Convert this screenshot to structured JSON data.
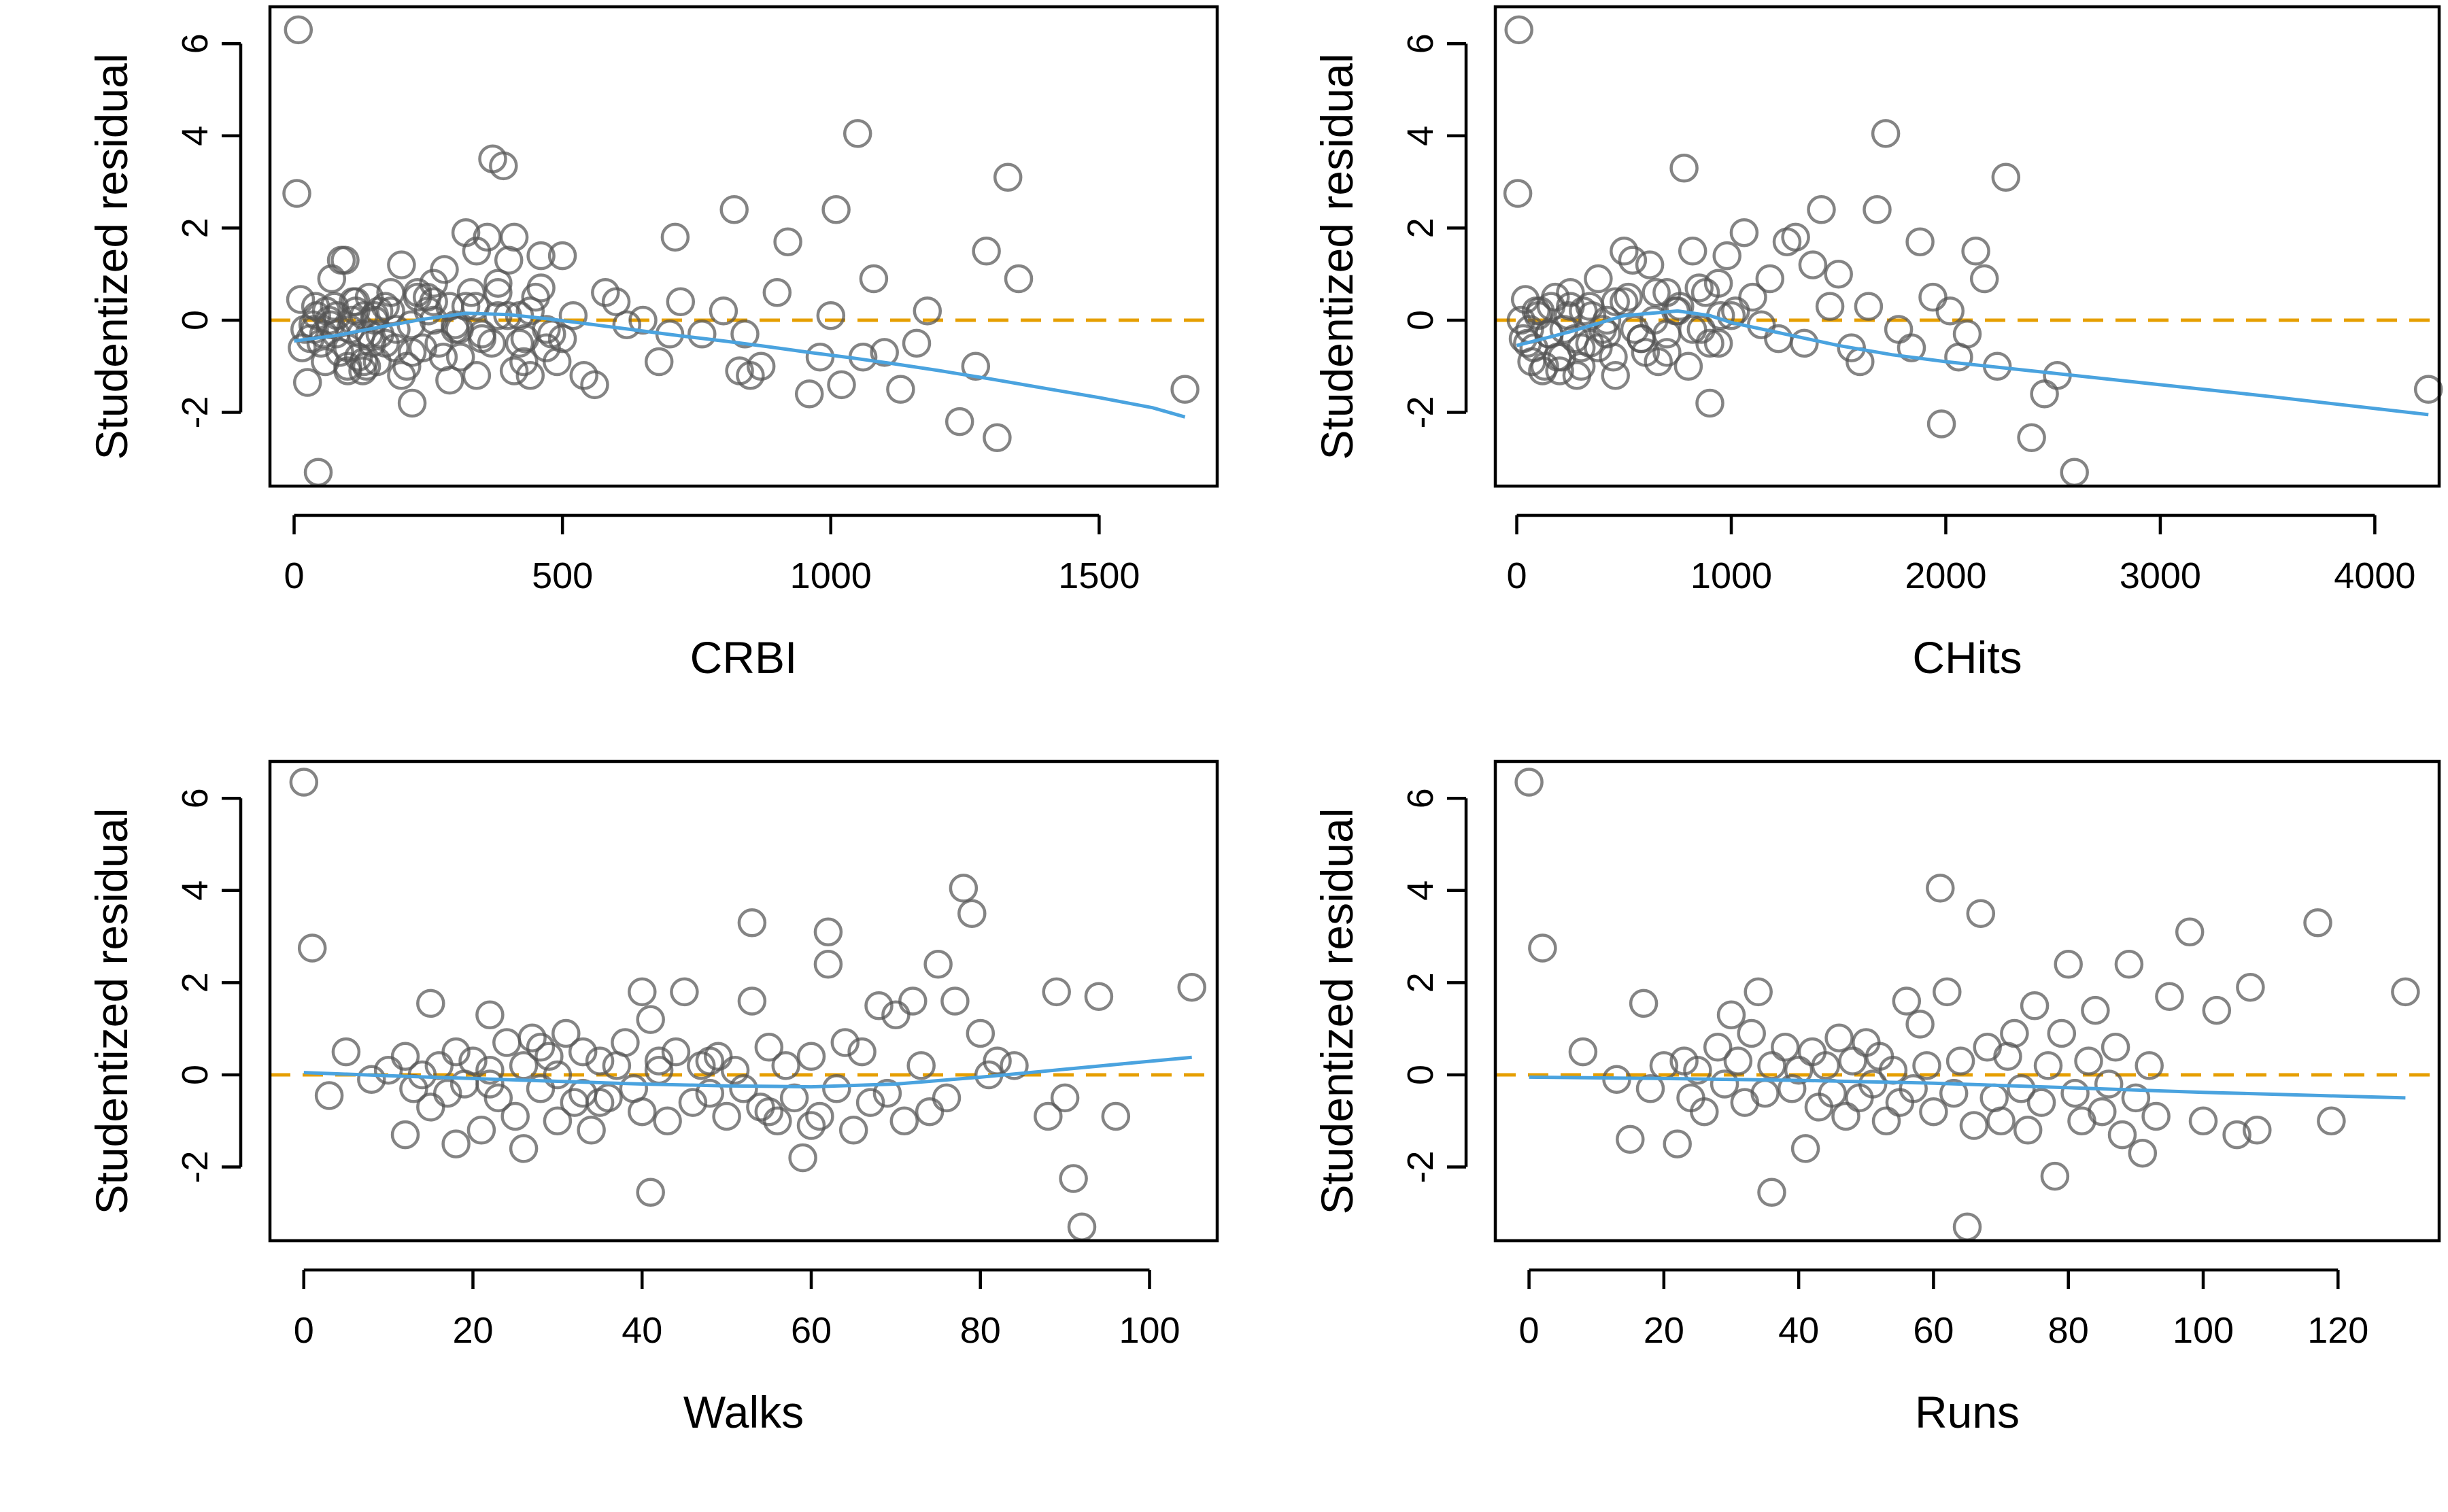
{
  "chart_data": [
    {
      "type": "scatter",
      "title": "",
      "xlabel": "CRBI",
      "ylabel": "Studentized residual",
      "xlim": [
        -45,
        1720
      ],
      "ylim": [
        -3.6,
        6.8
      ],
      "xticks": [
        0,
        500,
        1000,
        1500
      ],
      "yticks": [
        -2,
        0,
        2,
        4,
        6
      ],
      "reference_line_y": 0,
      "grid": false,
      "legend": "none",
      "colors": {
        "points": "#555555",
        "smooth": "#4aa3df",
        "reference": "#e69f00"
      },
      "points": {
        "x": [
          8,
          5,
          12,
          20,
          30,
          35,
          42,
          50,
          55,
          60,
          68,
          75,
          80,
          88,
          95,
          100,
          105,
          110,
          115,
          120,
          125,
          130,
          135,
          140,
          145,
          150,
          155,
          160,
          170,
          180,
          190,
          200,
          210,
          220,
          230,
          240,
          250,
          260,
          270,
          280,
          290,
          300,
          310,
          320,
          330,
          340,
          350,
          360,
          370,
          380,
          390,
          400,
          410,
          420,
          430,
          440,
          450,
          460,
          470,
          480,
          490,
          500,
          520,
          540,
          560,
          580,
          600,
          620,
          650,
          680,
          700,
          710,
          720,
          760,
          800,
          820,
          830,
          840,
          850,
          870,
          900,
          920,
          960,
          980,
          1000,
          1010,
          1020,
          1050,
          1060,
          1080,
          1100,
          1130,
          1160,
          1180,
          1240,
          1270,
          1290,
          1310,
          1330,
          1350,
          1660,
          25,
          45,
          65,
          85,
          100,
          115,
          130,
          150,
          170,
          200,
          230,
          260,
          290,
          320,
          350,
          380,
          410,
          440,
          470,
          15,
          40,
          70,
          100,
          140,
          180,
          220,
          260,
          300,
          340,
          380,
          420,
          460,
          500,
          38,
          58,
          78,
          108,
          128,
          158,
          188,
          218,
          248,
          278,
          308,
          338,
          368,
          398,
          428
        ],
        "y": [
          6.3,
          2.75,
          0.45,
          -0.2,
          -0.4,
          -0.1,
          0.1,
          -0.5,
          -0.3,
          0.2,
          -0.1,
          0.3,
          0.1,
          1.3,
          1.3,
          -0.6,
          -0.2,
          0.4,
          0.2,
          -0.8,
          -0.3,
          0.1,
          -1.0,
          0.5,
          -0.5,
          0.0,
          -0.9,
          -0.3,
          0.3,
          0.6,
          -0.2,
          1.2,
          -1.0,
          -1.8,
          0.5,
          -0.6,
          0.2,
          0.8,
          -0.5,
          1.1,
          0.3,
          -0.2,
          -0.8,
          1.9,
          0.6,
          1.5,
          -0.3,
          1.8,
          3.5,
          0.6,
          3.35,
          1.3,
          1.8,
          0.1,
          -0.4,
          -1.2,
          0.5,
          1.4,
          -0.6,
          -0.3,
          -0.9,
          1.4,
          0.1,
          -1.2,
          -1.4,
          0.6,
          0.4,
          -0.1,
          0.0,
          -0.9,
          -0.3,
          1.8,
          0.4,
          -0.3,
          0.2,
          2.4,
          -1.1,
          -0.3,
          -1.2,
          -1.0,
          0.6,
          1.7,
          -1.6,
          -0.8,
          0.1,
          2.4,
          -1.4,
          4.05,
          -0.8,
          0.9,
          -0.7,
          -1.5,
          -0.5,
          0.2,
          -2.2,
          -1.0,
          1.5,
          -2.55,
          3.1,
          0.9,
          -1.5,
          -1.35,
          -3.3,
          0.0,
          -0.7,
          -1.1,
          0.4,
          -0.9,
          0.1,
          -0.5,
          -1.2,
          0.6,
          0.0,
          -1.3,
          0.3,
          -0.4,
          0.8,
          -1.1,
          0.2,
          -0.2,
          -0.6,
          0.3,
          0.9,
          -1.0,
          -0.3,
          0.2,
          -0.7,
          0.4,
          -0.1,
          -1.2,
          0.1,
          -0.5,
          0.7,
          -0.4,
          -0.2,
          -0.9,
          -0.3,
          0.0,
          -1.1,
          0.2,
          -0.6,
          -0.1,
          0.5,
          -0.8,
          -0.2,
          0.3,
          -0.5,
          0.1,
          -0.9
        ]
      },
      "smooth": {
        "x": [
          0,
          80,
          160,
          240,
          320,
          400,
          480,
          560,
          640,
          720,
          800,
          880,
          960,
          1040,
          1120,
          1200,
          1300,
          1400,
          1500,
          1600,
          1660
        ],
        "y": [
          -0.45,
          -0.33,
          -0.15,
          0.02,
          0.15,
          0.12,
          0.02,
          -0.1,
          -0.22,
          -0.34,
          -0.45,
          -0.57,
          -0.7,
          -0.82,
          -0.95,
          -1.09,
          -1.28,
          -1.48,
          -1.68,
          -1.9,
          -2.1
        ]
      }
    },
    {
      "type": "scatter",
      "title": "",
      "xlabel": "CHits",
      "ylabel": "Studentized residual",
      "xlim": [
        -100,
        4300
      ],
      "ylim": [
        -3.6,
        6.8
      ],
      "xticks": [
        0,
        1000,
        2000,
        3000,
        4000
      ],
      "yticks": [
        -2,
        0,
        2,
        4,
        6
      ],
      "reference_line_y": 0,
      "grid": false,
      "legend": "none",
      "colors": {
        "points": "#555555",
        "smooth": "#4aa3df",
        "reference": "#e69f00"
      },
      "points": {
        "x": [
          10,
          5,
          40,
          60,
          80,
          100,
          130,
          160,
          190,
          220,
          250,
          280,
          310,
          340,
          380,
          420,
          460,
          500,
          540,
          580,
          620,
          660,
          700,
          740,
          780,
          820,
          860,
          900,
          940,
          980,
          1020,
          1060,
          1100,
          1140,
          1180,
          1220,
          1260,
          1300,
          1340,
          1380,
          1420,
          1460,
          1500,
          1560,
          1600,
          1640,
          1680,
          1720,
          1780,
          1840,
          1880,
          1940,
          1980,
          2020,
          2060,
          2100,
          2140,
          2180,
          2240,
          2280,
          2400,
          2460,
          2520,
          2600,
          4250,
          20,
          50,
          90,
          120,
          150,
          180,
          210,
          240,
          270,
          300,
          340,
          380,
          420,
          460,
          500,
          550,
          600,
          650,
          700,
          750,
          800,
          850,
          900,
          950,
          30,
          70,
          110,
          150,
          200,
          250,
          300,
          350,
          400,
          450,
          520,
          580,
          640,
          700,
          760,
          820,
          880,
          940,
          1000
        ],
        "y": [
          6.3,
          2.75,
          0.45,
          -0.2,
          -0.6,
          0.1,
          -1.0,
          0.3,
          -0.8,
          -0.2,
          0.6,
          -1.2,
          0.2,
          -0.5,
          0.9,
          -0.3,
          0.4,
          1.5,
          1.3,
          -0.4,
          1.2,
          -0.9,
          0.6,
          0.2,
          3.3,
          1.5,
          -0.2,
          -1.8,
          0.8,
          1.4,
          0.2,
          1.9,
          0.5,
          -0.1,
          0.9,
          -0.4,
          1.7,
          1.8,
          -0.5,
          1.2,
          2.4,
          0.3,
          1.0,
          -0.6,
          -0.9,
          0.3,
          2.4,
          4.05,
          -0.2,
          -0.6,
          1.7,
          0.5,
          -2.25,
          0.2,
          -0.8,
          -0.3,
          1.5,
          0.9,
          -1.0,
          3.1,
          -2.55,
          -1.6,
          -1.2,
          -3.3,
          -1.5,
          0.0,
          -0.5,
          0.2,
          -1.1,
          -0.3,
          0.5,
          -0.8,
          0.1,
          -0.4,
          -1.0,
          0.3,
          -0.6,
          0.0,
          -1.2,
          0.4,
          -0.2,
          -0.7,
          0.6,
          -0.3,
          0.2,
          -1.0,
          0.7,
          -0.5,
          0.1,
          -0.4,
          -0.9,
          0.2,
          -0.3,
          -1.1,
          0.3,
          -0.6,
          0.1,
          -0.2,
          -0.8,
          0.5,
          -0.4,
          0.0,
          -0.7,
          0.3,
          -0.2,
          0.6,
          -0.5,
          0.1
        ]
      },
      "smooth": {
        "x": [
          0,
          250,
          500,
          750,
          900,
          1000,
          1250,
          1500,
          1750,
          2000,
          2500,
          3000,
          3500,
          4250
        ],
        "y": [
          -0.55,
          -0.25,
          0.1,
          0.2,
          0.1,
          -0.05,
          -0.3,
          -0.55,
          -0.75,
          -0.9,
          -1.15,
          -1.4,
          -1.65,
          -2.05
        ]
      }
    },
    {
      "type": "scatter",
      "title": "",
      "xlabel": "Walks",
      "ylabel": "Studentized residual",
      "xlim": [
        -4,
        108
      ],
      "ylim": [
        -3.6,
        6.8
      ],
      "xticks": [
        0,
        20,
        40,
        60,
        80,
        100
      ],
      "yticks": [
        -2,
        0,
        2,
        4,
        6
      ],
      "reference_line_y": 0,
      "grid": false,
      "legend": "none",
      "colors": {
        "points": "#555555",
        "smooth": "#4aa3df",
        "reference": "#e69f00"
      },
      "points": {
        "x": [
          0,
          1,
          3,
          5,
          8,
          10,
          12,
          12,
          13,
          14,
          15,
          15,
          16,
          17,
          18,
          18,
          19,
          20,
          21,
          22,
          22,
          23,
          24,
          25,
          26,
          26,
          27,
          28,
          29,
          30,
          30,
          31,
          32,
          33,
          34,
          35,
          36,
          37,
          38,
          39,
          40,
          40,
          41,
          41,
          42,
          43,
          44,
          45,
          46,
          47,
          48,
          49,
          50,
          51,
          52,
          53,
          53,
          54,
          55,
          56,
          57,
          58,
          59,
          60,
          61,
          62,
          62,
          63,
          64,
          65,
          66,
          67,
          68,
          69,
          70,
          71,
          72,
          73,
          74,
          75,
          76,
          77,
          78,
          79,
          80,
          81,
          82,
          84,
          88,
          89,
          90,
          91,
          92,
          94,
          96,
          105,
          22,
          35,
          48,
          55,
          28,
          33,
          42,
          60
        ],
        "y": [
          6.35,
          2.75,
          -0.45,
          0.5,
          -0.1,
          0.1,
          -1.3,
          0.4,
          -0.3,
          0.0,
          1.55,
          -0.7,
          0.2,
          -0.4,
          -1.5,
          0.5,
          -0.2,
          0.3,
          -1.2,
          1.3,
          0.1,
          -0.5,
          0.7,
          -0.9,
          0.2,
          -1.6,
          0.8,
          -0.3,
          0.4,
          -1.0,
          0.0,
          0.9,
          -0.6,
          0.5,
          -1.2,
          0.3,
          -0.5,
          0.2,
          0.7,
          -0.3,
          1.8,
          -0.8,
          1.2,
          -2.55,
          0.3,
          -1.0,
          0.5,
          1.8,
          -0.6,
          0.2,
          -0.4,
          0.4,
          -0.9,
          0.1,
          -0.3,
          3.3,
          1.6,
          -0.7,
          0.6,
          -1.0,
          0.2,
          -0.5,
          -1.8,
          0.4,
          -0.9,
          3.1,
          2.4,
          -0.3,
          0.7,
          -1.2,
          0.5,
          -0.6,
          1.5,
          -0.4,
          1.3,
          -1.0,
          1.6,
          0.2,
          -0.8,
          2.4,
          -0.5,
          1.6,
          4.05,
          3.5,
          0.9,
          0.0,
          0.3,
          0.2,
          -0.9,
          1.8,
          -0.5,
          -2.25,
          -3.3,
          1.7,
          -0.9,
          1.9,
          -0.2,
          -0.6,
          0.3,
          -0.8,
          0.6,
          -0.4,
          0.1,
          -1.1
        ]
      },
      "smooth": {
        "x": [
          0,
          10,
          20,
          30,
          40,
          50,
          60,
          70,
          80,
          90,
          105
        ],
        "y": [
          0.05,
          -0.02,
          -0.08,
          -0.14,
          -0.2,
          -0.24,
          -0.26,
          -0.2,
          -0.05,
          0.12,
          0.38
        ]
      }
    },
    {
      "type": "scatter",
      "title": "",
      "xlabel": "Runs",
      "ylabel": "Studentized residual",
      "xlim": [
        -5,
        135
      ],
      "ylim": [
        -3.6,
        6.8
      ],
      "xticks": [
        0,
        20,
        40,
        60,
        80,
        100,
        120
      ],
      "yticks": [
        -2,
        0,
        2,
        4,
        6
      ],
      "reference_line_y": 0,
      "grid": false,
      "legend": "none",
      "colors": {
        "points": "#555555",
        "smooth": "#4aa3df",
        "reference": "#e69f00"
      },
      "points": {
        "x": [
          0,
          2,
          8,
          13,
          15,
          17,
          18,
          20,
          22,
          23,
          24,
          25,
          26,
          28,
          29,
          30,
          31,
          32,
          33,
          34,
          35,
          36,
          36,
          38,
          39,
          40,
          41,
          42,
          43,
          44,
          45,
          46,
          47,
          48,
          49,
          50,
          51,
          52,
          53,
          54,
          55,
          56,
          57,
          58,
          59,
          60,
          61,
          62,
          63,
          64,
          65,
          66,
          67,
          68,
          69,
          70,
          71,
          72,
          73,
          74,
          75,
          76,
          77,
          78,
          79,
          80,
          81,
          82,
          83,
          84,
          85,
          86,
          87,
          88,
          89,
          90,
          91,
          92,
          93,
          95,
          98,
          100,
          102,
          105,
          107,
          108,
          117,
          119,
          130
        ],
        "y": [
          6.35,
          2.75,
          0.5,
          -0.1,
          -1.4,
          1.55,
          -0.3,
          0.2,
          -1.5,
          0.3,
          -0.5,
          0.1,
          -0.8,
          0.6,
          -0.2,
          1.3,
          0.3,
          -0.6,
          0.9,
          1.8,
          -0.4,
          0.2,
          -2.55,
          0.6,
          -0.3,
          0.1,
          -1.6,
          0.5,
          -0.7,
          0.2,
          -0.4,
          0.8,
          -0.9,
          0.3,
          -0.5,
          0.7,
          -0.2,
          0.4,
          -1.0,
          0.1,
          -0.6,
          1.6,
          -0.3,
          1.1,
          0.2,
          -0.8,
          4.05,
          1.8,
          -0.4,
          0.3,
          -3.3,
          -1.1,
          3.5,
          0.6,
          -0.5,
          -1.0,
          0.4,
          0.9,
          -0.3,
          -1.2,
          1.5,
          -0.6,
          0.2,
          -2.2,
          0.9,
          2.4,
          -0.4,
          -1.0,
          0.3,
          1.4,
          -0.8,
          -0.2,
          0.6,
          -1.3,
          2.4,
          -0.5,
          -1.7,
          0.2,
          -0.9,
          1.7,
          3.1,
          -1.0,
          1.4,
          -1.3,
          1.9,
          -1.2,
          3.3,
          -1.0,
          1.8
        ]
      },
      "smooth": {
        "x": [
          0,
          20,
          40,
          60,
          80,
          100,
          130
        ],
        "y": [
          -0.05,
          -0.08,
          -0.12,
          -0.18,
          -0.28,
          -0.38,
          -0.5
        ]
      }
    }
  ]
}
